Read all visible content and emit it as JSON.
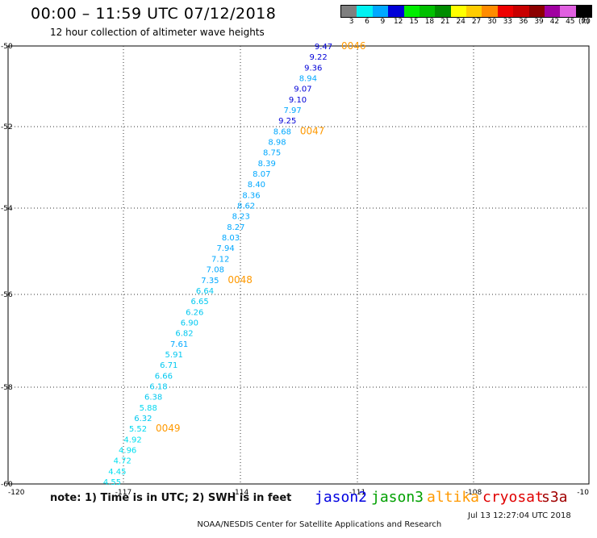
{
  "header": {
    "title": "00:00 – 11:59 UTC 07/12/2018",
    "subtitle": "12 hour collection of altimeter wave heights"
  },
  "legend": {
    "unit": "(ft)",
    "items": [
      {
        "label": "3",
        "color": "#7f7f7f"
      },
      {
        "label": "6",
        "color": "#00f2f2"
      },
      {
        "label": "9",
        "color": "#00a8ff"
      },
      {
        "label": "12",
        "color": "#0000d8"
      },
      {
        "label": "15",
        "color": "#00ee00"
      },
      {
        "label": "18",
        "color": "#00c000"
      },
      {
        "label": "21",
        "color": "#008c00"
      },
      {
        "label": "24",
        "color": "#ffff00"
      },
      {
        "label": "27",
        "color": "#ffcc00"
      },
      {
        "label": "30",
        "color": "#ff8c00"
      },
      {
        "label": "33",
        "color": "#ee0000"
      },
      {
        "label": "36",
        "color": "#c80000"
      },
      {
        "label": "39",
        "color": "#8c0000"
      },
      {
        "label": "42",
        "color": "#a000a0"
      },
      {
        "label": "45",
        "color": "#e060e0"
      },
      {
        "label": "70",
        "color": "#000000"
      }
    ]
  },
  "map": {
    "lon_ticks": [
      "-120",
      "-117",
      "-114",
      "-111",
      "-108",
      "-10"
    ],
    "lat_ticks": [
      "-50",
      "-52",
      "-54",
      "-56",
      "-58",
      "-60"
    ]
  },
  "track": {
    "points": [
      {
        "v": "9.47",
        "c": "#0000d8"
      },
      {
        "v": "9.22",
        "c": "#0000d8"
      },
      {
        "v": "9.36",
        "c": "#0000d8"
      },
      {
        "v": "8.94",
        "c": "#00a8ff"
      },
      {
        "v": "9.07",
        "c": "#0000d8"
      },
      {
        "v": "9.10",
        "c": "#0000d8"
      },
      {
        "v": "7.97",
        "c": "#00a8ff"
      },
      {
        "v": "9.25",
        "c": "#0000d8"
      },
      {
        "v": "8.68",
        "c": "#00a8ff"
      },
      {
        "v": "8.98",
        "c": "#00a8ff"
      },
      {
        "v": "8.75",
        "c": "#00a8ff"
      },
      {
        "v": "8.39",
        "c": "#00a8ff"
      },
      {
        "v": "8.07",
        "c": "#00a8ff"
      },
      {
        "v": "8.40",
        "c": "#00a8ff"
      },
      {
        "v": "8.36",
        "c": "#00a8ff"
      },
      {
        "v": "8.62",
        "c": "#00a8ff"
      },
      {
        "v": "8.23",
        "c": "#00a8ff"
      },
      {
        "v": "8.27",
        "c": "#00a8ff"
      },
      {
        "v": "8.03",
        "c": "#00a8ff"
      },
      {
        "v": "7.94",
        "c": "#00a8ff"
      },
      {
        "v": "7.12",
        "c": "#00a8ff"
      },
      {
        "v": "7.08",
        "c": "#00a8ff"
      },
      {
        "v": "7.35",
        "c": "#00a8ff"
      },
      {
        "v": "6.64",
        "c": "#00c8f0"
      },
      {
        "v": "6.65",
        "c": "#00c8f0"
      },
      {
        "v": "6.26",
        "c": "#00c8f0"
      },
      {
        "v": "6.90",
        "c": "#00c8f0"
      },
      {
        "v": "6.82",
        "c": "#00c8f0"
      },
      {
        "v": "7.61",
        "c": "#00a8ff"
      },
      {
        "v": "5.91",
        "c": "#00c8f0"
      },
      {
        "v": "6.71",
        "c": "#00c8f0"
      },
      {
        "v": "6.66",
        "c": "#00c8f0"
      },
      {
        "v": "6.18",
        "c": "#00c8f0"
      },
      {
        "v": "6.38",
        "c": "#00c8f0"
      },
      {
        "v": "5.88",
        "c": "#00d8f0"
      },
      {
        "v": "6.32",
        "c": "#00c8f0"
      },
      {
        "v": "5.52",
        "c": "#00d8f0"
      },
      {
        "v": "4.92",
        "c": "#00e0f0"
      },
      {
        "v": "4.96",
        "c": "#00e0f0"
      },
      {
        "v": "4.72",
        "c": "#00e0f0"
      },
      {
        "v": "4.45",
        "c": "#00e0f0"
      },
      {
        "v": "4.55",
        "c": "#00e0f0"
      }
    ],
    "times": [
      "0046",
      "0047",
      "0048",
      "0049"
    ],
    "time_color": "#ff9900"
  },
  "footer": {
    "note": "note: 1) Time is in UTC; 2) SWH is in feet",
    "satellites": [
      {
        "name": "jason2",
        "color": "#0000e0"
      },
      {
        "name": "jason3",
        "color": "#00a000"
      },
      {
        "name": "altika",
        "color": "#ff9900"
      },
      {
        "name": "cryosat",
        "color": "#e00000"
      },
      {
        "name": "s3a",
        "color": "#a00000"
      }
    ],
    "credit": "NOAA/NESDIS Center for Satellite Applications and Research",
    "timestamp": "Jul 13 12:27:04 UTC 2018"
  }
}
